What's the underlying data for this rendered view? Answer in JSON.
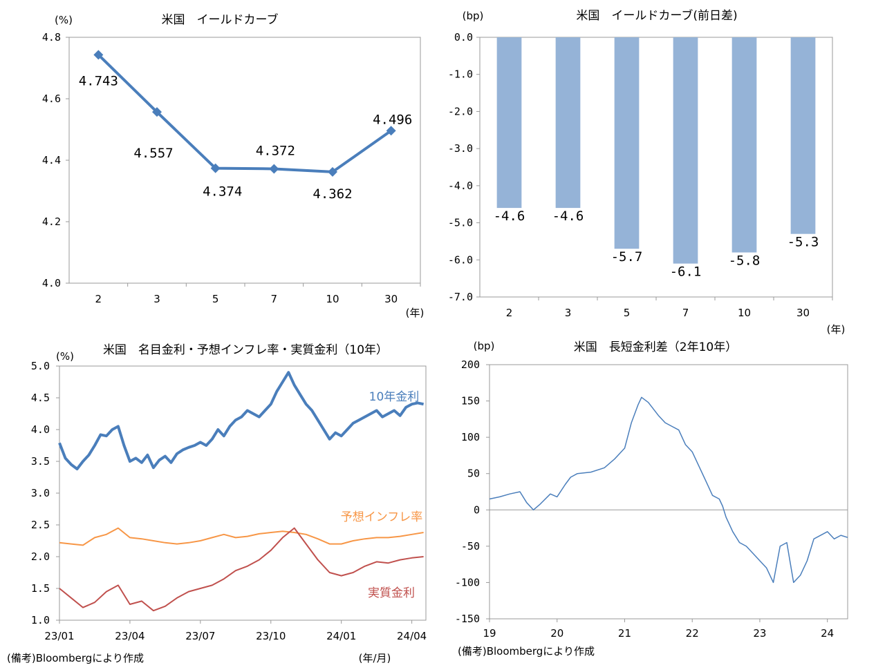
{
  "chart_data": [
    {
      "id": "yield-curve",
      "type": "line",
      "title": "米国　イールドカーブ",
      "ylabel": "(%)",
      "xlabel": "(年)",
      "categories": [
        "2",
        "3",
        "5",
        "7",
        "10",
        "30"
      ],
      "values": [
        4.743,
        4.557,
        4.374,
        4.372,
        4.362,
        4.496
      ],
      "data_labels": [
        "4.743",
        "4.557",
        "4.374",
        "4.372",
        "4.362",
        "4.496"
      ],
      "ylim": [
        4.0,
        4.8
      ],
      "yticks": [
        "4.8",
        "4.6",
        "4.4",
        "4.2",
        "4.0"
      ],
      "color": "#4a7ebb",
      "grid": false
    },
    {
      "id": "yield-curve-change",
      "type": "bar",
      "title": "米国　イールドカーブ(前日差)",
      "ylabel": "(bp)",
      "xlabel": "(年)",
      "categories": [
        "2",
        "3",
        "5",
        "7",
        "10",
        "30"
      ],
      "values": [
        -4.6,
        -4.6,
        -5.7,
        -6.1,
        -5.8,
        -5.3
      ],
      "data_labels": [
        "-4.6",
        "-4.6",
        "-5.7",
        "-6.1",
        "-5.8",
        "-5.3"
      ],
      "ylim": [
        -7.0,
        0.0
      ],
      "yticks": [
        "0.0",
        "-1.0",
        "-2.0",
        "-3.0",
        "-4.0",
        "-5.0",
        "-6.0",
        "-7.0"
      ],
      "color": "#95b3d7",
      "grid": false
    },
    {
      "id": "nominal-inflation-real",
      "type": "line",
      "title": "米国　名目金利・予想インフレ率・実質金利（10年）",
      "ylabel": "(%)",
      "xlabel": "(年/月)",
      "x_ticks": [
        "23/01",
        "23/04",
        "23/07",
        "23/10",
        "24/01",
        "24/04"
      ],
      "ylim": [
        1.0,
        5.0
      ],
      "yticks": [
        "5.0",
        "4.5",
        "4.0",
        "3.5",
        "3.0",
        "2.5",
        "2.0",
        "1.5",
        "1.0"
      ],
      "x_range_months": [
        0,
        15.6
      ],
      "note": "(備考)Bloombergにより作成",
      "series": [
        {
          "name": "10年金利",
          "color": "#4a7ebb",
          "points": [
            [
              0,
              3.79
            ],
            [
              0.25,
              3.55
            ],
            [
              0.5,
              3.45
            ],
            [
              0.75,
              3.38
            ],
            [
              1,
              3.5
            ],
            [
              1.25,
              3.6
            ],
            [
              1.5,
              3.75
            ],
            [
              1.75,
              3.92
            ],
            [
              2,
              3.9
            ],
            [
              2.25,
              4.0
            ],
            [
              2.5,
              4.05
            ],
            [
              2.75,
              3.75
            ],
            [
              3,
              3.5
            ],
            [
              3.25,
              3.55
            ],
            [
              3.5,
              3.48
            ],
            [
              3.75,
              3.6
            ],
            [
              4,
              3.4
            ],
            [
              4.25,
              3.52
            ],
            [
              4.5,
              3.58
            ],
            [
              4.75,
              3.48
            ],
            [
              5,
              3.62
            ],
            [
              5.25,
              3.68
            ],
            [
              5.5,
              3.72
            ],
            [
              5.75,
              3.75
            ],
            [
              6,
              3.8
            ],
            [
              6.25,
              3.75
            ],
            [
              6.5,
              3.85
            ],
            [
              6.75,
              4.0
            ],
            [
              7,
              3.9
            ],
            [
              7.25,
              4.05
            ],
            [
              7.5,
              4.15
            ],
            [
              7.75,
              4.2
            ],
            [
              8,
              4.3
            ],
            [
              8.25,
              4.25
            ],
            [
              8.5,
              4.2
            ],
            [
              8.75,
              4.3
            ],
            [
              9,
              4.4
            ],
            [
              9.25,
              4.6
            ],
            [
              9.5,
              4.75
            ],
            [
              9.75,
              4.9
            ],
            [
              10,
              4.7
            ],
            [
              10.25,
              4.55
            ],
            [
              10.5,
              4.4
            ],
            [
              10.75,
              4.3
            ],
            [
              11,
              4.15
            ],
            [
              11.25,
              4.0
            ],
            [
              11.5,
              3.85
            ],
            [
              11.75,
              3.95
            ],
            [
              12,
              3.9
            ],
            [
              12.25,
              4.0
            ],
            [
              12.5,
              4.1
            ],
            [
              12.75,
              4.15
            ],
            [
              13,
              4.2
            ],
            [
              13.25,
              4.25
            ],
            [
              13.5,
              4.3
            ],
            [
              13.75,
              4.2
            ],
            [
              14,
              4.25
            ],
            [
              14.25,
              4.3
            ],
            [
              14.5,
              4.22
            ],
            [
              14.75,
              4.35
            ],
            [
              15,
              4.4
            ],
            [
              15.25,
              4.42
            ],
            [
              15.5,
              4.4
            ]
          ]
        },
        {
          "name": "予想インフレ率",
          "color": "#f79646",
          "points": [
            [
              0,
              2.22
            ],
            [
              0.5,
              2.2
            ],
            [
              1,
              2.18
            ],
            [
              1.5,
              2.3
            ],
            [
              2,
              2.35
            ],
            [
              2.5,
              2.45
            ],
            [
              3,
              2.3
            ],
            [
              3.5,
              2.28
            ],
            [
              4,
              2.25
            ],
            [
              4.5,
              2.22
            ],
            [
              5,
              2.2
            ],
            [
              5.5,
              2.22
            ],
            [
              6,
              2.25
            ],
            [
              6.5,
              2.3
            ],
            [
              7,
              2.35
            ],
            [
              7.5,
              2.3
            ],
            [
              8,
              2.32
            ],
            [
              8.5,
              2.36
            ],
            [
              9,
              2.38
            ],
            [
              9.5,
              2.4
            ],
            [
              10,
              2.38
            ],
            [
              10.5,
              2.35
            ],
            [
              11,
              2.28
            ],
            [
              11.5,
              2.2
            ],
            [
              12,
              2.2
            ],
            [
              12.5,
              2.25
            ],
            [
              13,
              2.28
            ],
            [
              13.5,
              2.3
            ],
            [
              14,
              2.3
            ],
            [
              14.5,
              2.32
            ],
            [
              15,
              2.35
            ],
            [
              15.5,
              2.38
            ]
          ]
        },
        {
          "name": "実質金利",
          "color": "#c0504d",
          "points": [
            [
              0,
              1.5
            ],
            [
              0.5,
              1.35
            ],
            [
              1,
              1.2
            ],
            [
              1.5,
              1.28
            ],
            [
              2,
              1.45
            ],
            [
              2.5,
              1.55
            ],
            [
              3,
              1.25
            ],
            [
              3.5,
              1.3
            ],
            [
              4,
              1.15
            ],
            [
              4.5,
              1.22
            ],
            [
              5,
              1.35
            ],
            [
              5.5,
              1.45
            ],
            [
              6,
              1.5
            ],
            [
              6.5,
              1.55
            ],
            [
              7,
              1.65
            ],
            [
              7.5,
              1.78
            ],
            [
              8,
              1.85
            ],
            [
              8.5,
              1.95
            ],
            [
              9,
              2.1
            ],
            [
              9.5,
              2.3
            ],
            [
              10,
              2.45
            ],
            [
              10.5,
              2.2
            ],
            [
              11,
              1.95
            ],
            [
              11.5,
              1.75
            ],
            [
              12,
              1.7
            ],
            [
              12.5,
              1.75
            ],
            [
              13,
              1.85
            ],
            [
              13.5,
              1.92
            ],
            [
              14,
              1.9
            ],
            [
              14.5,
              1.95
            ],
            [
              15,
              1.98
            ],
            [
              15.5,
              2.0
            ]
          ]
        }
      ]
    },
    {
      "id": "term-spread",
      "type": "line",
      "title": "米国　長短金利差（2年10年）",
      "ylabel": "(bp)",
      "x_ticks": [
        "19",
        "20",
        "21",
        "22",
        "23",
        "24"
      ],
      "ylim": [
        -150,
        200
      ],
      "yticks": [
        "200",
        "150",
        "100",
        "50",
        "0",
        "-50",
        "-100",
        "-150"
      ],
      "x_range_years": [
        2019,
        2024.3
      ],
      "note": "(備考)Bloombergにより作成",
      "series": [
        {
          "name": "2年10年",
          "color": "#4a7ebb",
          "points": [
            [
              2019,
              15
            ],
            [
              2019.15,
              18
            ],
            [
              2019.3,
              22
            ],
            [
              2019.45,
              25
            ],
            [
              2019.55,
              10
            ],
            [
              2019.65,
              0
            ],
            [
              2019.75,
              8
            ],
            [
              2019.9,
              22
            ],
            [
              2020,
              18
            ],
            [
              2020.12,
              35
            ],
            [
              2020.2,
              45
            ],
            [
              2020.3,
              50
            ],
            [
              2020.5,
              52
            ],
            [
              2020.7,
              58
            ],
            [
              2020.85,
              70
            ],
            [
              2021,
              85
            ],
            [
              2021.1,
              120
            ],
            [
              2021.2,
              145
            ],
            [
              2021.25,
              155
            ],
            [
              2021.35,
              148
            ],
            [
              2021.5,
              130
            ],
            [
              2021.6,
              120
            ],
            [
              2021.7,
              115
            ],
            [
              2021.8,
              110
            ],
            [
              2021.9,
              90
            ],
            [
              2022,
              80
            ],
            [
              2022.1,
              60
            ],
            [
              2022.2,
              40
            ],
            [
              2022.3,
              20
            ],
            [
              2022.4,
              15
            ],
            [
              2022.45,
              5
            ],
            [
              2022.5,
              -10
            ],
            [
              2022.6,
              -30
            ],
            [
              2022.7,
              -45
            ],
            [
              2022.8,
              -50
            ],
            [
              2022.9,
              -60
            ],
            [
              2023,
              -70
            ],
            [
              2023.1,
              -80
            ],
            [
              2023.2,
              -100
            ],
            [
              2023.3,
              -50
            ],
            [
              2023.4,
              -45
            ],
            [
              2023.5,
              -100
            ],
            [
              2023.6,
              -90
            ],
            [
              2023.7,
              -70
            ],
            [
              2023.8,
              -40
            ],
            [
              2023.9,
              -35
            ],
            [
              2024,
              -30
            ],
            [
              2024.1,
              -40
            ],
            [
              2024.2,
              -35
            ],
            [
              2024.3,
              -38
            ]
          ]
        }
      ]
    }
  ]
}
